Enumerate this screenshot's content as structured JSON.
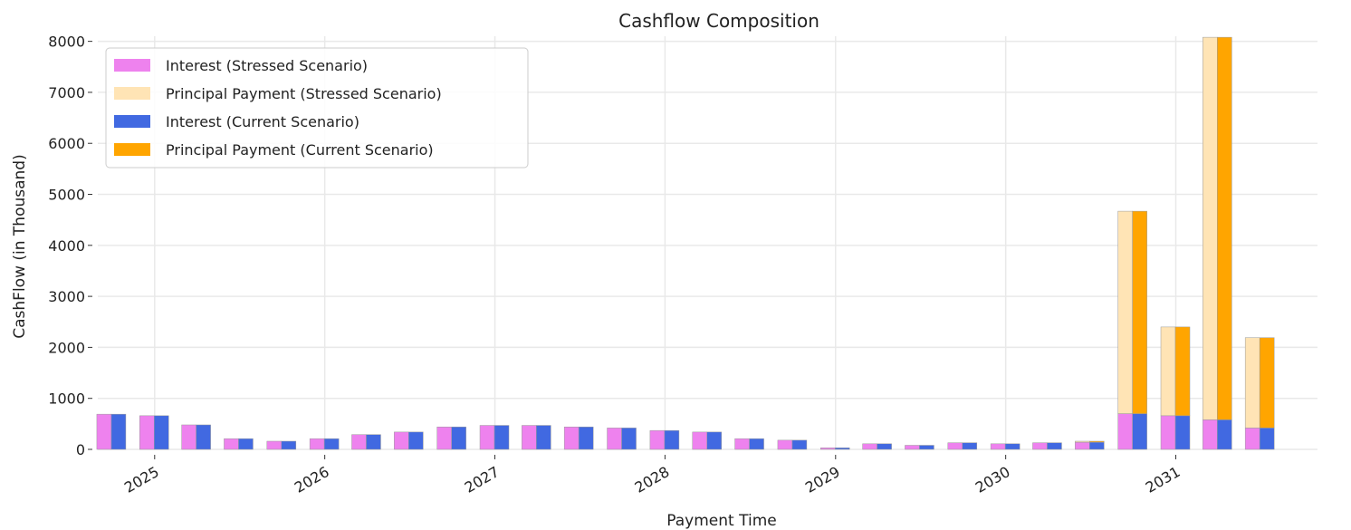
{
  "chart_data": {
    "type": "bar",
    "title": "Cashflow Composition",
    "xlabel": "Payment Time",
    "ylabel": "CashFlow (in Thousand)",
    "ylim": [
      0,
      8100
    ],
    "yticks": [
      0,
      1000,
      2000,
      3000,
      4000,
      5000,
      6000,
      7000,
      8000
    ],
    "xlim": [
      "2024-09-01",
      "2031-11-01"
    ],
    "xticks": [
      {
        "date": "2025-01-01",
        "label": "2025"
      },
      {
        "date": "2026-01-01",
        "label": "2026"
      },
      {
        "date": "2027-01-01",
        "label": "2027"
      },
      {
        "date": "2028-01-01",
        "label": "2028"
      },
      {
        "date": "2029-01-01",
        "label": "2029"
      },
      {
        "date": "2030-01-01",
        "label": "2030"
      },
      {
        "date": "2031-01-01",
        "label": "2031"
      }
    ],
    "grid": true,
    "legend_position": "top-left",
    "dates": [
      "2024-09-30",
      "2024-12-31",
      "2025-03-31",
      "2025-06-30",
      "2025-09-30",
      "2025-12-31",
      "2026-03-31",
      "2026-06-30",
      "2026-09-30",
      "2026-12-31",
      "2027-03-31",
      "2027-06-30",
      "2027-09-30",
      "2027-12-31",
      "2028-03-31",
      "2028-06-30",
      "2028-09-30",
      "2028-12-31",
      "2029-03-31",
      "2029-06-30",
      "2029-09-30",
      "2029-12-31",
      "2030-03-31",
      "2030-06-30",
      "2030-09-30",
      "2030-12-31",
      "2031-03-31",
      "2031-06-30"
    ],
    "series": [
      {
        "name": "Interest (Stressed Scenario)",
        "color": "#ee82ee",
        "values": [
          690,
          660,
          480,
          210,
          160,
          210,
          290,
          340,
          440,
          470,
          470,
          440,
          420,
          370,
          340,
          210,
          180,
          30,
          110,
          80,
          130,
          110,
          130,
          140,
          700,
          660,
          580,
          420
        ]
      },
      {
        "name": "Principal Payment (Stressed Scenario)",
        "color": "#ffe4b5",
        "values": [
          0,
          0,
          0,
          0,
          0,
          0,
          0,
          0,
          0,
          0,
          0,
          0,
          0,
          0,
          0,
          0,
          0,
          0,
          0,
          0,
          0,
          0,
          0,
          20,
          3970,
          1740,
          7500,
          1770
        ]
      },
      {
        "name": "Interest (Current Scenario)",
        "color": "#4169e1",
        "values": [
          690,
          660,
          480,
          210,
          160,
          210,
          290,
          340,
          440,
          470,
          470,
          440,
          420,
          370,
          340,
          210,
          180,
          30,
          110,
          80,
          130,
          110,
          130,
          140,
          700,
          660,
          580,
          420
        ]
      },
      {
        "name": "Principal Payment (Current Scenario)",
        "color": "#ffa500",
        "values": [
          0,
          0,
          0,
          0,
          0,
          0,
          0,
          0,
          0,
          0,
          0,
          0,
          0,
          0,
          0,
          0,
          0,
          0,
          0,
          0,
          0,
          0,
          0,
          20,
          3970,
          1740,
          7500,
          1770
        ]
      }
    ]
  }
}
